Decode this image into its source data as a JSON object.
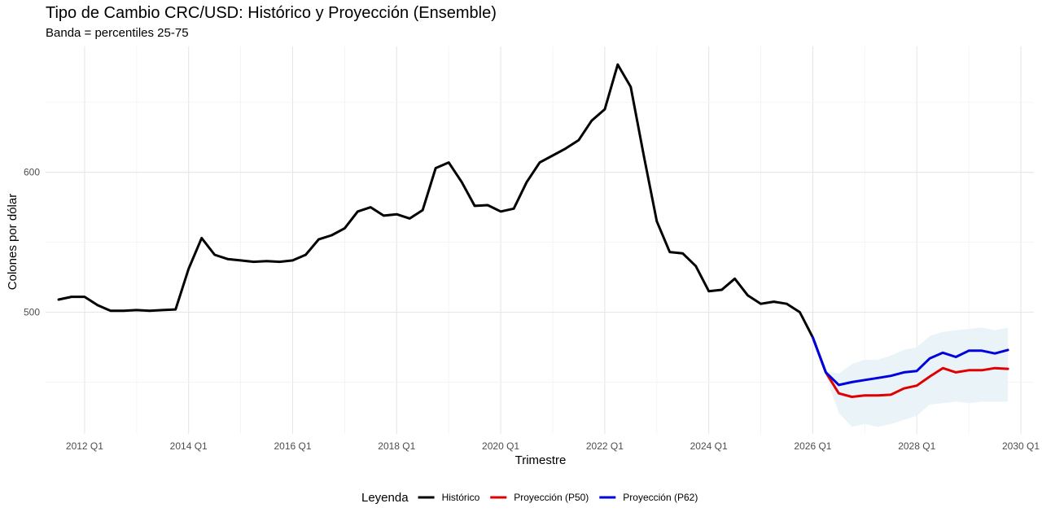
{
  "chart_data": {
    "type": "line",
    "title": "Tipo de Cambio CRC/USD: Histórico y Proyección (Ensemble)",
    "subtitle": "Banda = percentiles 25-75",
    "xlabel": "Trimestre",
    "ylabel": "Colones por dólar",
    "x_ticks": [
      "2012 Q1",
      "2014 Q1",
      "2016 Q1",
      "2018 Q1",
      "2020 Q1",
      "2022 Q1",
      "2024 Q1",
      "2026 Q1",
      "2028 Q1",
      "2030 Q1"
    ],
    "y_ticks": [
      500,
      600
    ],
    "xlim": [
      "2011 Q2",
      "2030 Q2"
    ],
    "ylim": [
      413,
      690
    ],
    "grid": true,
    "legend": {
      "title": "Leyenda",
      "position": "bottom",
      "entries": [
        {
          "name": "Histórico",
          "color": "#000000"
        },
        {
          "name": "Proyección (P50)",
          "color": "#e00000"
        },
        {
          "name": "Proyección (P62)",
          "color": "#0000dd"
        }
      ]
    },
    "band": {
      "name": "percentiles 25-75",
      "color": "#eaf3f8",
      "x": [
        "2026 Q2",
        "2026 Q3",
        "2026 Q4",
        "2027 Q1",
        "2027 Q2",
        "2027 Q3",
        "2027 Q4",
        "2028 Q1",
        "2028 Q2",
        "2028 Q3",
        "2028 Q4",
        "2029 Q1",
        "2029 Q2",
        "2029 Q3",
        "2029 Q4"
      ],
      "lower": [
        455,
        428,
        418,
        420,
        418,
        420,
        423,
        426,
        434,
        435,
        436,
        435,
        436,
        436,
        436
      ],
      "upper": [
        458,
        456,
        463,
        466,
        466,
        469,
        473,
        475,
        483,
        486,
        487,
        488,
        489,
        487,
        489
      ]
    },
    "series": [
      {
        "name": "Histórico",
        "color": "#000000",
        "x": [
          "2011 Q3",
          "2011 Q4",
          "2012 Q1",
          "2012 Q2",
          "2012 Q3",
          "2012 Q4",
          "2013 Q1",
          "2013 Q2",
          "2013 Q3",
          "2013 Q4",
          "2014 Q1",
          "2014 Q2",
          "2014 Q3",
          "2014 Q4",
          "2015 Q1",
          "2015 Q2",
          "2015 Q3",
          "2015 Q4",
          "2016 Q1",
          "2016 Q2",
          "2016 Q3",
          "2016 Q4",
          "2017 Q1",
          "2017 Q2",
          "2017 Q3",
          "2017 Q4",
          "2018 Q1",
          "2018 Q2",
          "2018 Q3",
          "2018 Q4",
          "2019 Q1",
          "2019 Q2",
          "2019 Q3",
          "2019 Q4",
          "2020 Q1",
          "2020 Q2",
          "2020 Q3",
          "2020 Q4",
          "2021 Q1",
          "2021 Q2",
          "2021 Q3",
          "2021 Q4",
          "2022 Q1",
          "2022 Q2",
          "2022 Q3",
          "2022 Q4",
          "2023 Q1",
          "2023 Q2",
          "2023 Q3",
          "2023 Q4",
          "2024 Q1",
          "2024 Q2",
          "2024 Q3",
          "2024 Q4",
          "2025 Q1",
          "2025 Q2",
          "2025 Q3",
          "2025 Q4",
          "2026 Q1",
          "2026 Q2"
        ],
        "values": [
          509,
          511,
          511,
          505,
          501,
          501,
          501.5,
          501,
          501.5,
          502,
          531,
          553,
          541,
          538,
          537,
          536,
          536.5,
          536,
          537,
          541,
          552,
          555,
          560,
          572,
          575,
          569,
          570,
          567,
          573,
          603,
          607,
          593,
          576,
          576.5,
          572,
          574,
          593,
          607,
          612,
          617,
          623,
          637,
          645,
          677,
          661,
          612,
          565,
          543,
          542,
          533,
          515,
          516,
          524,
          512,
          506,
          507.5,
          506,
          500,
          482,
          457
        ]
      },
      {
        "name": "Proyección (P50)",
        "color": "#e00000",
        "x": [
          "2026 Q2",
          "2026 Q3",
          "2026 Q4",
          "2027 Q1",
          "2027 Q2",
          "2027 Q3",
          "2027 Q4",
          "2028 Q1",
          "2028 Q2",
          "2028 Q3",
          "2028 Q4",
          "2029 Q1",
          "2029 Q2",
          "2029 Q3",
          "2029 Q4"
        ],
        "values": [
          457,
          442,
          439.5,
          440.5,
          440.5,
          441,
          445.5,
          447.5,
          454,
          460,
          457,
          458.5,
          458.5,
          460,
          459.5
        ]
      },
      {
        "name": "Proyección (P62)",
        "color": "#0000dd",
        "x": [
          "2026 Q1",
          "2026 Q2",
          "2026 Q3",
          "2026 Q4",
          "2027 Q1",
          "2027 Q2",
          "2027 Q3",
          "2027 Q4",
          "2028 Q1",
          "2028 Q2",
          "2028 Q3",
          "2028 Q4",
          "2029 Q1",
          "2029 Q2",
          "2029 Q3",
          "2029 Q4"
        ],
        "values": [
          482,
          457,
          448,
          450,
          451.5,
          453,
          454.5,
          457,
          458,
          467,
          471,
          468,
          472.5,
          472.5,
          470.5,
          473
        ]
      }
    ]
  }
}
